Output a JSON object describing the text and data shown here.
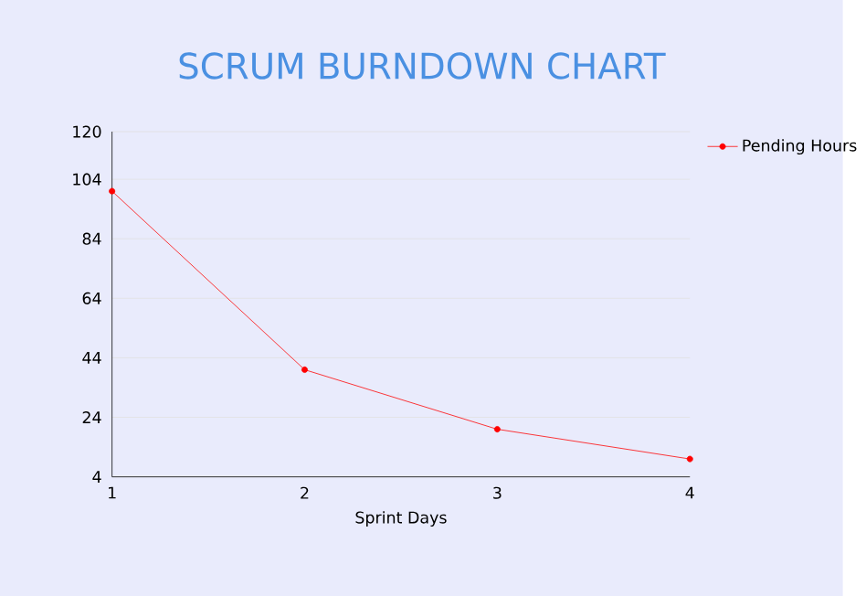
{
  "chart_data": {
    "type": "line",
    "title": "SCRUM BURNDOWN CHART",
    "xlabel": "Sprint Days",
    "x": [
      1,
      2,
      3,
      4
    ],
    "series": [
      {
        "name": "Pending Hours",
        "color": "#ff0000",
        "values": [
          100,
          40,
          20,
          10
        ]
      }
    ],
    "xlim": [
      1,
      4
    ],
    "xticks": [
      1,
      2,
      3,
      4
    ],
    "ylim": [
      4,
      120
    ],
    "yticks": [
      4,
      24,
      44,
      64,
      84,
      104,
      120
    ],
    "grid": "y",
    "legend": "top right",
    "marker": "circle",
    "line_style": "solid"
  }
}
